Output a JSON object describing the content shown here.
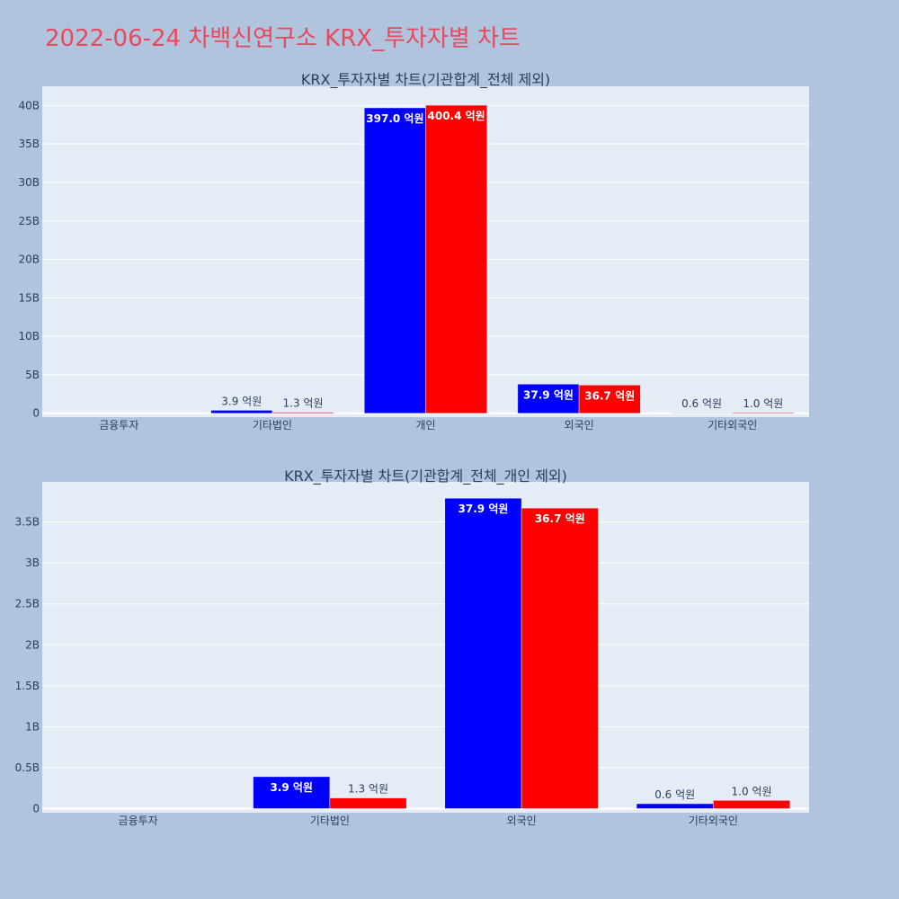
{
  "page_title": "2022-06-24 차백신연구소 KRX_투자자별 차트",
  "colors": {
    "page_background": "#b0c4de",
    "plot_background": "#e5ecf6",
    "title": "#e8495f",
    "series_1": "#0000ff",
    "series_2": "#ff0000"
  },
  "chart_data": [
    {
      "type": "bar",
      "title": "KRX_투자자별 차트(기관합계_전체 제외)",
      "categories": [
        "금융투자",
        "기타법인",
        "개인",
        "외국인",
        "기타외국인"
      ],
      "series": [
        {
          "values": [
            0,
            390000000,
            39700000000,
            3790000000,
            60000000
          ],
          "labels": [
            "",
            "3.9 억원",
            "397.0 억원",
            "37.9 억원",
            "0.6 억원"
          ]
        },
        {
          "values": [
            0,
            130000000,
            40040000000,
            3670000000,
            100000000
          ],
          "labels": [
            "",
            "1.3 억원",
            "400.4 억원",
            "36.7 억원",
            "1.0 억원"
          ]
        }
      ],
      "ylim": [
        -500000000,
        42500000000
      ],
      "yticks": [
        0,
        5000000000,
        10000000000,
        15000000000,
        20000000000,
        25000000000,
        30000000000,
        35000000000,
        40000000000
      ],
      "ytick_labels": [
        "0",
        "5B",
        "10B",
        "15B",
        "20B",
        "25B",
        "30B",
        "35B",
        "40B"
      ],
      "grid": true,
      "legend": "none"
    },
    {
      "type": "bar",
      "title": "KRX_투자자별 차트(기관합계_전체_개인 제외)",
      "categories": [
        "금융투자",
        "기타법인",
        "외국인",
        "기타외국인"
      ],
      "series": [
        {
          "values": [
            0,
            390000000,
            3790000000,
            60000000
          ],
          "labels": [
            "",
            "3.9 억원",
            "37.9 억원",
            "0.6 억원"
          ]
        },
        {
          "values": [
            0,
            130000000,
            3670000000,
            100000000
          ],
          "labels": [
            "",
            "1.3 억원",
            "36.7 억원",
            "1.0 억원"
          ]
        }
      ],
      "ylim": [
        -50000000,
        3990000000
      ],
      "yticks": [
        0,
        500000000,
        1000000000,
        1500000000,
        2000000000,
        2500000000,
        3000000000,
        3500000000
      ],
      "ytick_labels": [
        "0",
        "0.5B",
        "1B",
        "1.5B",
        "2B",
        "2.5B",
        "3B",
        "3.5B"
      ],
      "grid": true,
      "legend": "none"
    }
  ]
}
